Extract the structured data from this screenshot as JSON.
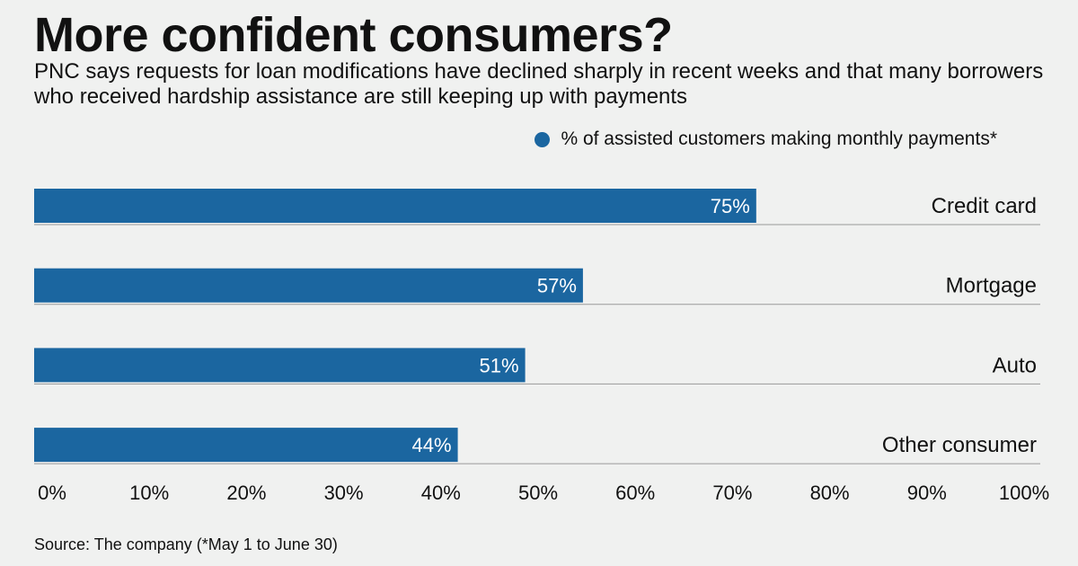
{
  "title": "More confident consumers?",
  "subtitle": "PNC says requests for loan modifications have declined sharply in recent weeks and that many borrowers who received hardship assistance are still keeping up with payments",
  "source": "Source: The company (*May 1 to June 30)",
  "colors": {
    "bar": "#1b66a0",
    "baseline": "#999999",
    "background": "#f0f1f0"
  },
  "chart_data": {
    "type": "bar",
    "orientation": "horizontal",
    "categories": [
      "Credit card",
      "Mortgage",
      "Auto",
      "Other consumer"
    ],
    "series": [
      {
        "name": "% of assisted customers making monthly payments*",
        "values": [
          75,
          57,
          51,
          44
        ],
        "labels": [
          "75%",
          "57%",
          "51%",
          "44%"
        ]
      }
    ],
    "xlim": [
      0,
      100
    ],
    "ticks": [
      "0%",
      "10%",
      "20%",
      "30%",
      "40%",
      "50%",
      "60%",
      "70%",
      "80%",
      "90%",
      "100%"
    ],
    "legend": "top-right",
    "grid": false
  }
}
